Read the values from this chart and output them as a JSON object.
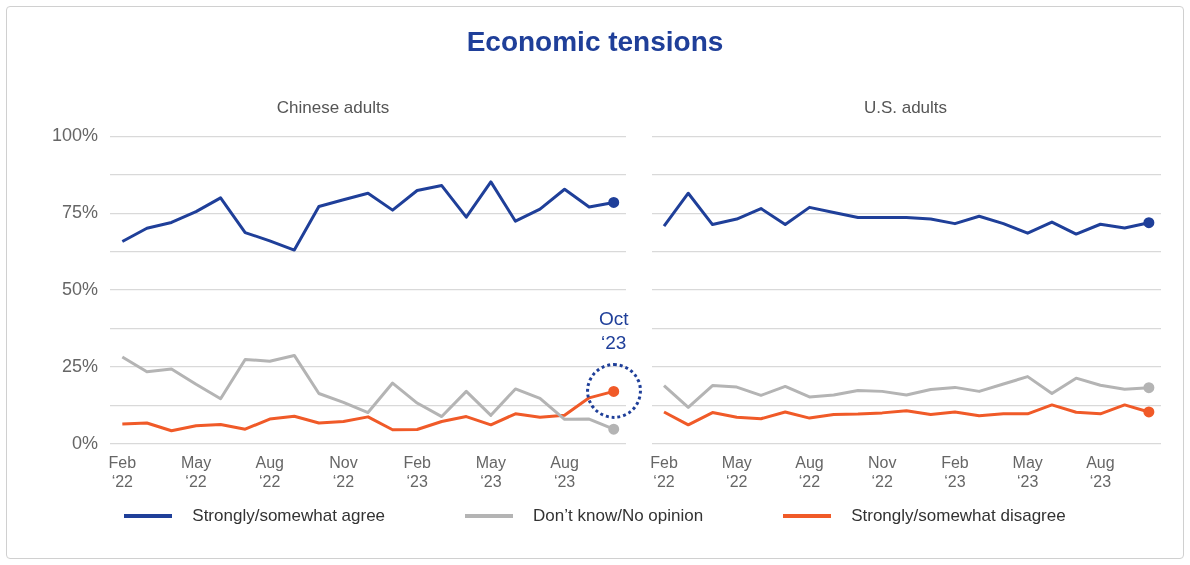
{
  "chart_data": [
    {
      "type": "line",
      "title": "Economic tensions",
      "subtitle": "Chinese adults",
      "categories": [
        "Feb ‘22",
        null,
        null,
        "May ‘22",
        null,
        null,
        "Aug ‘22",
        null,
        null,
        "Nov ‘22",
        null,
        null,
        "Feb ‘23",
        null,
        null,
        "May ‘23",
        null,
        null,
        "Aug ‘23",
        null,
        null
      ],
      "series": [
        {
          "name": "Strongly/somewhat agree",
          "color": "#1f3f99",
          "values": [
            65.8,
            70.1,
            72,
            75.5,
            80,
            68.7,
            66,
            63,
            77.2,
            79.4,
            81.5,
            76,
            82.4,
            84,
            73.7,
            85.2,
            72.4,
            76.3,
            82.8,
            77,
            78.5
          ]
        },
        {
          "name": "Don’t know/No opinion",
          "color": "#b4b4b4",
          "values": [
            28.2,
            23.4,
            24.3,
            19.3,
            14.6,
            27.4,
            26.8,
            28.7,
            16.3,
            13.4,
            10.1,
            19.7,
            13.2,
            8.8,
            17,
            9.2,
            17.8,
            14.7,
            7.9,
            8,
            4.7
          ]
        },
        {
          "name": "Strongly/somewhat disagree",
          "color": "#f05a28",
          "values": [
            6.4,
            6.7,
            4.2,
            5.8,
            6.2,
            4.7,
            8,
            8.9,
            6.7,
            7.2,
            8.7,
            4.5,
            4.6,
            7.2,
            8.8,
            6.1,
            9.7,
            8.6,
            9.2,
            14.9,
            17
          ]
        }
      ],
      "ylim": [
        0,
        100
      ],
      "yticks": [
        {
          "value": 0,
          "label": "0%"
        },
        {
          "value": 12.5,
          "label": null
        },
        {
          "value": 25,
          "label": "25%"
        },
        {
          "value": 37.5,
          "label": null
        },
        {
          "value": 50,
          "label": "50%"
        },
        {
          "value": 62.5,
          "label": null
        },
        {
          "value": 75,
          "label": "75%"
        },
        {
          "value": 87.5,
          "label": null
        },
        {
          "value": 100,
          "label": "100%"
        }
      ],
      "grid": "y",
      "legend": "bottom",
      "annotations": [
        "Oct ‘23"
      ]
    },
    {
      "type": "line",
      "subtitle": "U.S. adults",
      "categories": [
        "Feb ‘22",
        null,
        null,
        "May ‘22",
        null,
        null,
        "Aug ‘22",
        null,
        null,
        "Nov ‘22",
        null,
        null,
        "Feb ‘23",
        null,
        null,
        "May ‘23",
        null,
        null,
        "Aug ‘23",
        null,
        null
      ],
      "series": [
        {
          "color": "#1f3f99",
          "values": [
            70.8,
            81.5,
            71.3,
            73.1,
            76.5,
            71.3,
            76.9,
            75.2,
            73.6,
            73.6,
            73.6,
            73.1,
            71.6,
            74,
            71.6,
            68.5,
            72.1,
            68.2,
            71.4,
            70.2,
            71.9
          ]
        },
        {
          "color": "#b4b4b4",
          "values": [
            18.9,
            11.8,
            18.9,
            18.4,
            15.7,
            18.6,
            15.2,
            15.8,
            17.3,
            17,
            15.8,
            17.6,
            18.3,
            17,
            19.4,
            21.8,
            16.3,
            21.3,
            19,
            17.7,
            18.2
          ]
        },
        {
          "color": "#f05a28",
          "values": [
            10.3,
            6.1,
            10.1,
            8.6,
            8.1,
            10.3,
            8.3,
            9.5,
            9.6,
            10,
            10.7,
            9.5,
            10.3,
            9.1,
            9.7,
            9.7,
            12.6,
            10.2,
            9.7,
            12.6,
            10.3
          ]
        }
      ],
      "ylim": [
        0,
        100
      ],
      "yticks": [
        {
          "value": 0,
          "label": null
        },
        {
          "value": 12.5,
          "label": null
        },
        {
          "value": 25,
          "label": null
        },
        {
          "value": 37.5,
          "label": null
        },
        {
          "value": 50,
          "label": null
        },
        {
          "value": 62.5,
          "label": null
        },
        {
          "value": 75,
          "label": null
        },
        {
          "value": 87.5,
          "label": null
        },
        {
          "value": 100,
          "label": null
        }
      ],
      "grid": "y",
      "tick_labels": "x"
    }
  ]
}
